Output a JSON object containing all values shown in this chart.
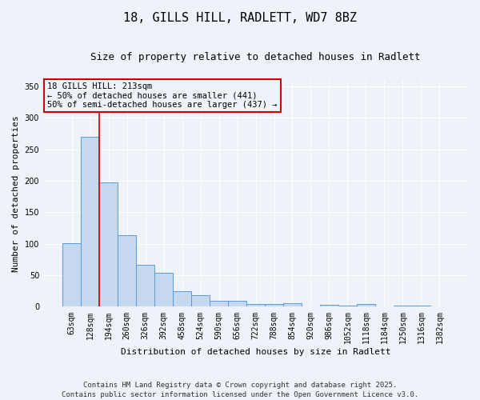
{
  "title1": "18, GILLS HILL, RADLETT, WD7 8BZ",
  "title2": "Size of property relative to detached houses in Radlett",
  "xlabel": "Distribution of detached houses by size in Radlett",
  "ylabel": "Number of detached properties",
  "bin_labels": [
    "63sqm",
    "128sqm",
    "194sqm",
    "260sqm",
    "326sqm",
    "392sqm",
    "458sqm",
    "524sqm",
    "590sqm",
    "656sqm",
    "722sqm",
    "788sqm",
    "854sqm",
    "920sqm",
    "986sqm",
    "1052sqm",
    "1118sqm",
    "1184sqm",
    "1250sqm",
    "1316sqm",
    "1382sqm"
  ],
  "bar_values": [
    101,
    270,
    197,
    114,
    67,
    54,
    25,
    18,
    10,
    9,
    4,
    5,
    6,
    1,
    3,
    2,
    4,
    0,
    2,
    2,
    1
  ],
  "bar_color": "#c5d8f0",
  "bar_edge_color": "#5b9bd5",
  "property_line_color": "#cc0000",
  "annotation_title": "18 GILLS HILL: 213sqm",
  "annotation_line1": "← 50% of detached houses are smaller (441)",
  "annotation_line2": "50% of semi-detached houses are larger (437) →",
  "annotation_box_color": "#cc0000",
  "ylim": [
    0,
    360
  ],
  "yticks": [
    0,
    50,
    100,
    150,
    200,
    250,
    300,
    350
  ],
  "footer": "Contains HM Land Registry data © Crown copyright and database right 2025.\nContains public sector information licensed under the Open Government Licence v3.0.",
  "bg_color": "#eef2f9",
  "title1_fontsize": 11,
  "title2_fontsize": 9,
  "xlabel_fontsize": 8,
  "ylabel_fontsize": 8,
  "tick_fontsize": 7,
  "footer_fontsize": 6.5,
  "annotation_fontsize": 7.5
}
